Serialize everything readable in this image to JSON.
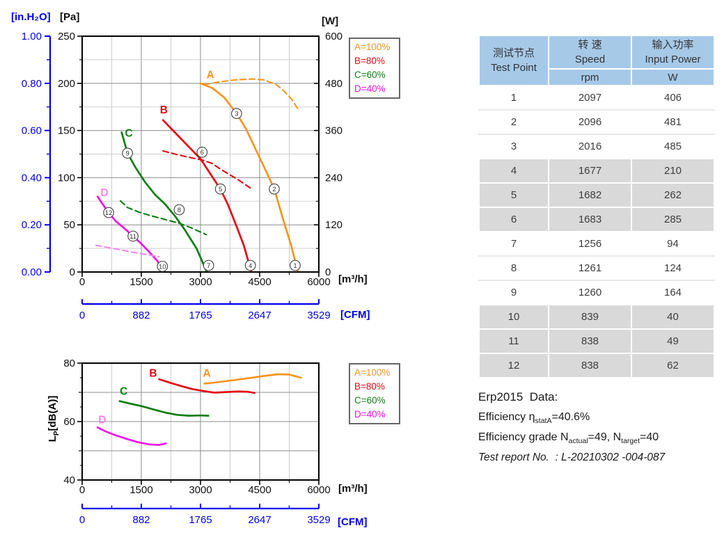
{
  "colors": {
    "blue": "#0000EE",
    "orange": "#F7941E",
    "red": "#E30613",
    "green": "#0E7E12",
    "magenta": "#F012E8",
    "magenta_light": "#F785EC",
    "grid_major": "#8B8B8B",
    "grid_minor": "#CDCDCD",
    "circle_stroke": "#4D4D4D",
    "table_header_bg": "#A6C9E8",
    "table_row_shaded": "#D9D9D9"
  },
  "labels": {
    "in_h2o": "[in.H₂O]",
    "pa": "[Pa]",
    "w": "[W]",
    "m3h": "[m³/h]",
    "cfm": "[CFM]",
    "lp_prefix": "L",
    "lp_sub": "P",
    "lp_suffix": "[dB(A)]"
  },
  "legend": {
    "items": [
      {
        "label": "A=100%",
        "color": "#F7941E"
      },
      {
        "label": "B=80%",
        "color": "#E30613"
      },
      {
        "label": "C=60%",
        "color": "#0E7E12"
      },
      {
        "label": "D=40%",
        "color": "#F012E8"
      }
    ]
  },
  "chart_data": [
    {
      "id": "performance",
      "type": "line",
      "title": "",
      "x": {
        "unit": "[m³/h]",
        "min": 0,
        "max": 6000,
        "major_ticks": [
          0,
          1500,
          3000,
          4500,
          6000
        ],
        "minor_step": 750
      },
      "x_secondary": {
        "unit": "[CFM]",
        "ticks": [
          "0",
          "882",
          "1765",
          "2647",
          "3529"
        ]
      },
      "y_pressure": {
        "unit": "[Pa]",
        "min": 0,
        "max": 250,
        "major_ticks": [
          0,
          50,
          100,
          150,
          200,
          250
        ],
        "minor_step": 25
      },
      "y_pressure_secondary": {
        "unit": "[in.H₂O]",
        "ticks": [
          "0.00",
          "0.20",
          "0.40",
          "0.60",
          "0.80",
          "1.00"
        ]
      },
      "y_power": {
        "unit": "[W]",
        "min": 0,
        "max": 600,
        "major_ticks": [
          0,
          120,
          240,
          360,
          480,
          600
        ],
        "minor_step": 60
      },
      "series": [
        {
          "id": "A-pressure",
          "legend": "A=100%",
          "style": "solid",
          "y_axis": "pressure",
          "color": "#F7941E",
          "points": [
            [
              3000,
              200
            ],
            [
              3300,
              195
            ],
            [
              3600,
              185
            ],
            [
              3915,
              168
            ],
            [
              4150,
              152
            ],
            [
              4400,
              130
            ],
            [
              4650,
              108
            ],
            [
              4870,
              88
            ],
            [
              5100,
              55
            ],
            [
              5300,
              28
            ],
            [
              5470,
              0
            ]
          ]
        },
        {
          "id": "B-pressure",
          "legend": "B=80%",
          "style": "solid",
          "y_axis": "pressure",
          "color": "#E30613",
          "points": [
            [
              2050,
              161
            ],
            [
              2350,
              148
            ],
            [
              2650,
              135
            ],
            [
              3000,
              120
            ],
            [
              3250,
              104
            ],
            [
              3505,
              88
            ],
            [
              3700,
              71
            ],
            [
              3900,
              50
            ],
            [
              4100,
              28
            ],
            [
              4290,
              0
            ]
          ]
        },
        {
          "id": "C-pressure",
          "legend": "C=60%",
          "style": "solid",
          "y_axis": "pressure",
          "color": "#0E7E12",
          "points": [
            [
              1000,
              148
            ],
            [
              1150,
              126
            ],
            [
              1350,
              111
            ],
            [
              1600,
              95
            ],
            [
              1850,
              82
            ],
            [
              2100,
              72
            ],
            [
              2340,
              60
            ],
            [
              2600,
              45
            ],
            [
              2900,
              25
            ],
            [
              3160,
              0
            ]
          ]
        },
        {
          "id": "D-pressure",
          "legend": "D=40%",
          "style": "solid",
          "y_axis": "pressure",
          "color": "#F012E8",
          "points": [
            [
              390,
              80
            ],
            [
              550,
              70
            ],
            [
              672,
              63
            ],
            [
              850,
              54
            ],
            [
              1050,
              47
            ],
            [
              1290,
              38
            ],
            [
              1500,
              30
            ],
            [
              1750,
              19
            ],
            [
              1900,
              12
            ],
            [
              2070,
              0
            ]
          ]
        },
        {
          "id": "A-power",
          "legend": "A=100%",
          "style": "dashed",
          "y_axis": "power",
          "color": "#F7941E",
          "points": [
            [
              3100,
              477
            ],
            [
              3500,
              484
            ],
            [
              3900,
              489
            ],
            [
              4300,
              491
            ],
            [
              4600,
              489
            ],
            [
              4900,
              478
            ],
            [
              5100,
              462
            ],
            [
              5300,
              441
            ],
            [
              5500,
              410
            ]
          ]
        },
        {
          "id": "B-power",
          "legend": "B=80%",
          "style": "dashed",
          "y_axis": "power",
          "color": "#E30613",
          "points": [
            [
              2050,
              308
            ],
            [
              2400,
              299
            ],
            [
              2700,
              292
            ],
            [
              3040,
              285
            ],
            [
              3300,
              276
            ],
            [
              3505,
              262
            ],
            [
              3700,
              250
            ],
            [
              3950,
              235
            ],
            [
              4320,
              210
            ]
          ]
        },
        {
          "id": "C-power",
          "legend": "C=60%",
          "style": "dashed",
          "y_axis": "power",
          "color": "#0E7E12",
          "points": [
            [
              970,
              181
            ],
            [
              1150,
              164
            ],
            [
              1450,
              152
            ],
            [
              1750,
              143
            ],
            [
              2050,
              135
            ],
            [
              2460,
              124
            ],
            [
              2750,
              113
            ],
            [
              3150,
              95
            ]
          ]
        },
        {
          "id": "D-power",
          "legend": "D=40%",
          "style": "dashed",
          "y_axis": "power",
          "color": "#F785EC",
          "points": [
            [
              350,
              68
            ],
            [
              672,
              62
            ],
            [
              1000,
              56
            ],
            [
              1290,
              50
            ],
            [
              1600,
              45
            ],
            [
              1950,
              39
            ]
          ]
        }
      ],
      "curve_labels": [
        {
          "text": "A",
          "x": 3250,
          "y": 209,
          "color": "#F7941E"
        },
        {
          "text": "B",
          "x": 2070,
          "y": 172,
          "color": "#E30613"
        },
        {
          "text": "C",
          "x": 1185,
          "y": 147,
          "color": "#0E7E12"
        },
        {
          "text": "D",
          "x": 565,
          "y": 84,
          "color": "#F785EC"
        }
      ],
      "test_points": [
        {
          "n": "1",
          "x": 5400,
          "y": 7
        },
        {
          "n": "2",
          "x": 4870,
          "y": 88
        },
        {
          "n": "3",
          "x": 3915,
          "y": 168
        },
        {
          "n": "4",
          "x": 4265,
          "y": 7
        },
        {
          "n": "5",
          "x": 3505,
          "y": 88
        },
        {
          "n": "6",
          "x": 3040,
          "y": 127
        },
        {
          "n": "7",
          "x": 3205,
          "y": 7
        },
        {
          "n": "8",
          "x": 2460,
          "y": 66
        },
        {
          "n": "9",
          "x": 1150,
          "y": 126
        },
        {
          "n": "10",
          "x": 2035,
          "y": 6
        },
        {
          "n": "11",
          "x": 1290,
          "y": 38
        },
        {
          "n": "12",
          "x": 672,
          "y": 63
        }
      ]
    },
    {
      "id": "noise",
      "type": "line",
      "title": "",
      "x": {
        "unit": "[m³/h]",
        "min": 0,
        "max": 6000,
        "major_ticks": [
          0,
          1500,
          3000,
          4500,
          6000
        ],
        "minor_step": 750
      },
      "x_secondary": {
        "unit": "[CFM]",
        "ticks": [
          "0",
          "882",
          "1765",
          "2647",
          "3529"
        ]
      },
      "y": {
        "unit": "Lp[dB(A)]",
        "min": 40,
        "max": 80,
        "major_ticks": [
          40,
          60,
          80
        ],
        "grid_ticks": [
          50,
          60,
          70
        ]
      },
      "series": [
        {
          "id": "A-noise",
          "legend": "A=100%",
          "style": "solid",
          "color": "#F7941E",
          "points": [
            [
              3100,
              73
            ],
            [
              3400,
              73.4
            ],
            [
              3800,
              74.1
            ],
            [
              4200,
              74.8
            ],
            [
              4600,
              75.6
            ],
            [
              4950,
              76.2
            ],
            [
              5250,
              76.1
            ],
            [
              5550,
              75
            ]
          ]
        },
        {
          "id": "B-noise",
          "legend": "B=80%",
          "style": "solid",
          "color": "#E30613",
          "points": [
            [
              1950,
              74.5
            ],
            [
              2200,
              73.4
            ],
            [
              2500,
              72.2
            ],
            [
              2800,
              71.1
            ],
            [
              3100,
              70.4
            ],
            [
              3350,
              69.9
            ],
            [
              3650,
              70.1
            ],
            [
              3950,
              70.3
            ],
            [
              4200,
              70.2
            ],
            [
              4370,
              69.8
            ]
          ]
        },
        {
          "id": "C-noise",
          "legend": "C=60%",
          "style": "solid",
          "color": "#0E7E12",
          "points": [
            [
              950,
              67
            ],
            [
              1200,
              66.2
            ],
            [
              1500,
              65.3
            ],
            [
              1800,
              64.2
            ],
            [
              2100,
              63.1
            ],
            [
              2400,
              62.3
            ],
            [
              2700,
              62
            ],
            [
              3000,
              62.1
            ],
            [
              3200,
              62
            ]
          ]
        },
        {
          "id": "D-noise",
          "legend": "D=40%",
          "style": "solid",
          "color": "#F012E8",
          "points": [
            [
              390,
              58
            ],
            [
              600,
              56.6
            ],
            [
              850,
              55.3
            ],
            [
              1100,
              54.2
            ],
            [
              1400,
              53
            ],
            [
              1700,
              52.2
            ],
            [
              1950,
              52
            ],
            [
              2120,
              52.5
            ]
          ]
        }
      ],
      "curve_labels": [
        {
          "text": "A",
          "x": 3160,
          "y": 76.5,
          "color": "#F7941E"
        },
        {
          "text": "B",
          "x": 1800,
          "y": 76.5,
          "color": "#E30613"
        },
        {
          "text": "C",
          "x": 1055,
          "y": 70.3,
          "color": "#0E7E12"
        },
        {
          "text": "D",
          "x": 510,
          "y": 60.6,
          "color": "#F785EC"
        }
      ]
    }
  ],
  "table": {
    "header": {
      "test_point_zh": "测试节点",
      "test_point_en": "Test Point",
      "speed_zh": "转 速",
      "speed_en": "Speed",
      "speed_unit": "rpm",
      "power_zh": "输入功率",
      "power_en": "Input Power",
      "power_unit": "W"
    },
    "rows": [
      {
        "point": "1",
        "rpm": "2097",
        "power": "406"
      },
      {
        "point": "2",
        "rpm": "2096",
        "power": "481"
      },
      {
        "point": "3",
        "rpm": "2016",
        "power": "485"
      },
      {
        "point": "4",
        "rpm": "1677",
        "power": "210"
      },
      {
        "point": "5",
        "rpm": "1682",
        "power": "262"
      },
      {
        "point": "6",
        "rpm": "1683",
        "power": "285"
      },
      {
        "point": "7",
        "rpm": "1256",
        "power": "94"
      },
      {
        "point": "8",
        "rpm": "1261",
        "power": "124"
      },
      {
        "point": "9",
        "rpm": "1260",
        "power": "164"
      },
      {
        "point": "10",
        "rpm": "839",
        "power": "40"
      },
      {
        "point": "11",
        "rpm": "838",
        "power": "49"
      },
      {
        "point": "12",
        "rpm": "838",
        "power": "62"
      }
    ]
  },
  "erp": {
    "title": "Erp2015  Data:",
    "efficiency_prefix": "Efficiency η",
    "efficiency_sub": "statA",
    "efficiency_value": "=40.6%",
    "grade_prefix": "Efficiency grade N",
    "grade_sub1": "actual",
    "grade_mid": "=49, N",
    "grade_sub2": "target",
    "grade_value": "=40",
    "report": "Test report No.  : L-20210302 -004-087"
  }
}
